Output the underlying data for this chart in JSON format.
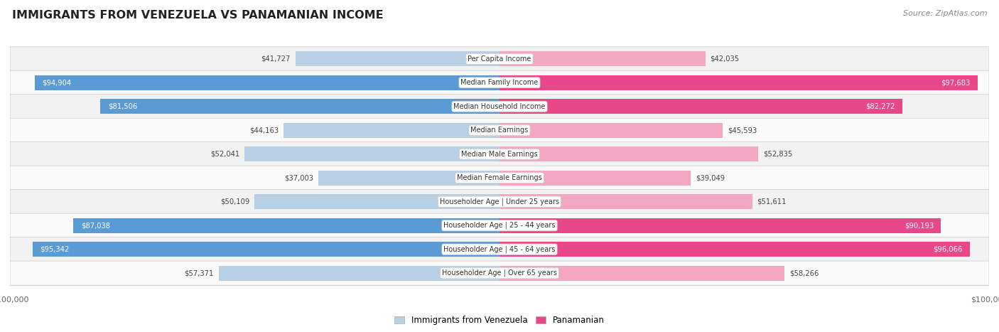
{
  "title": "IMMIGRANTS FROM VENEZUELA VS PANAMANIAN INCOME",
  "source": "Source: ZipAtlas.com",
  "categories": [
    "Per Capita Income",
    "Median Family Income",
    "Median Household Income",
    "Median Earnings",
    "Median Male Earnings",
    "Median Female Earnings",
    "Householder Age | Under 25 years",
    "Householder Age | 25 - 44 years",
    "Householder Age | 45 - 64 years",
    "Householder Age | Over 65 years"
  ],
  "venezuela_values": [
    41727,
    94904,
    81506,
    44163,
    52041,
    37003,
    50109,
    87038,
    95342,
    57371
  ],
  "panamanian_values": [
    42035,
    97683,
    82272,
    45593,
    52835,
    39049,
    51611,
    90193,
    96066,
    58266
  ],
  "venezuela_color_dark": "#5b9bd5",
  "venezuela_color_light": "#b8cfe4",
  "panamanian_color_dark": "#e8488a",
  "panamanian_color_light": "#f4a7c3",
  "max_value": 100000,
  "background_color": "#ffffff",
  "row_bg_even": "#f2f2f2",
  "row_bg_odd": "#fafafa",
  "legend_venezuela": "Immigrants from Venezuela",
  "legend_panamanian": "Panamanian",
  "threshold_dark": 75000
}
